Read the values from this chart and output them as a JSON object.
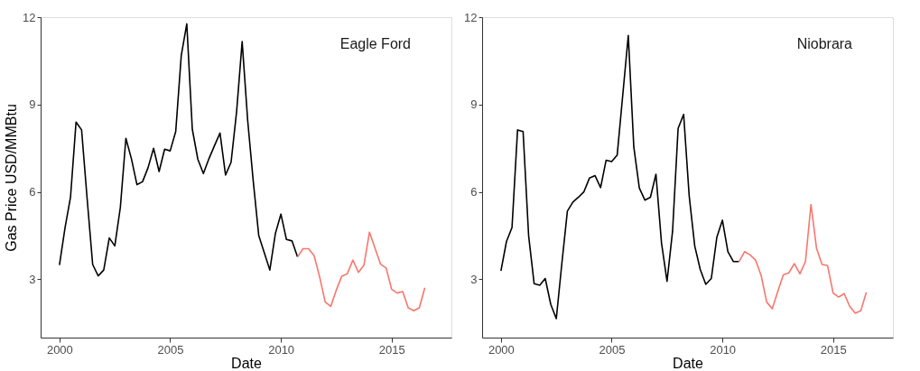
{
  "chart_data": [
    {
      "type": "line",
      "title": "Eagle Ford",
      "xlabel": "Date",
      "ylabel": "Gas Price USD/MMBtu",
      "xlim": [
        1999.15,
        2017.7
      ],
      "xticks": [
        2000,
        2005,
        2010,
        2015
      ],
      "ylim": [
        1,
        12
      ],
      "yticks": [
        3,
        6,
        9,
        12
      ],
      "grid": false,
      "legend": false,
      "line_style": "solid",
      "marker": "none",
      "series": [
        {
          "color": "#000000",
          "x": [
            2000,
            2000.25,
            2000.5,
            2000.75,
            2001,
            2001.25,
            2001.5,
            2001.75,
            2002,
            2002.25,
            2002.5,
            2002.75,
            2003,
            2003.25,
            2003.5,
            2003.75,
            2004,
            2004.25,
            2004.5,
            2004.75,
            2005,
            2005.25,
            2005.5,
            2005.75,
            2006,
            2006.25,
            2006.5,
            2006.75,
            2007,
            2007.25,
            2007.5,
            2007.75,
            2008,
            2008.25,
            2008.5,
            2008.75,
            2009,
            2009.25,
            2009.5,
            2009.75,
            2010,
            2010.25,
            2010.5,
            2010.75
          ],
          "values": [
            3.49,
            4.76,
            5.82,
            8.4,
            8.13,
            5.77,
            3.51,
            3.12,
            3.32,
            4.42,
            4.15,
            5.47,
            7.84,
            7.14,
            6.25,
            6.35,
            6.83,
            7.5,
            6.7,
            7.47,
            7.41,
            8.07,
            10.68,
            11.77,
            8.15,
            7.12,
            6.63,
            7.14,
            7.59,
            8.02,
            6.58,
            7.02,
            8.76,
            11.16,
            8.45,
            6.38,
            4.5,
            3.91,
            3.32,
            4.57,
            5.24,
            4.37,
            4.32,
            3.77
          ]
        },
        {
          "color": "#f8766d",
          "x": [
            2010.75,
            2011,
            2011.25,
            2011.5,
            2011.75,
            2012,
            2012.25,
            2012.5,
            2012.75,
            2013,
            2013.25,
            2013.5,
            2013.75,
            2014,
            2014.25,
            2014.5,
            2014.75,
            2015,
            2015.25,
            2015.5,
            2015.75,
            2016,
            2016.25,
            2016.5
          ],
          "values": [
            3.77,
            4.05,
            4.05,
            3.81,
            3.08,
            2.22,
            2.07,
            2.63,
            3.11,
            3.19,
            3.66,
            3.24,
            3.49,
            4.62,
            4.07,
            3.52,
            3.39,
            2.66,
            2.53,
            2.58,
            2.02,
            1.92,
            2.02,
            2.71
          ]
        }
      ]
    },
    {
      "type": "line",
      "title": "Niobrara",
      "xlabel": "Date",
      "xlim": [
        1999.15,
        2017.7
      ],
      "xticks": [
        2000,
        2005,
        2010,
        2015
      ],
      "ylim": [
        1,
        12
      ],
      "yticks": [
        3,
        6,
        9,
        12
      ],
      "grid": false,
      "legend": false,
      "line_style": "solid",
      "marker": "none",
      "series": [
        {
          "color": "#000000",
          "x": [
            2000,
            2000.25,
            2000.5,
            2000.75,
            2001,
            2001.25,
            2001.5,
            2001.75,
            2002,
            2002.25,
            2002.5,
            2002.75,
            2003,
            2003.25,
            2003.5,
            2003.75,
            2004,
            2004.25,
            2004.5,
            2004.75,
            2005,
            2005.25,
            2005.5,
            2005.75,
            2006,
            2006.25,
            2006.5,
            2006.75,
            2007,
            2007.25,
            2007.5,
            2007.75,
            2008,
            2008.25,
            2008.5,
            2008.75,
            2009,
            2009.25,
            2009.5,
            2009.75,
            2010,
            2010.25,
            2010.5,
            2010.75
          ],
          "values": [
            3.29,
            4.3,
            4.78,
            8.13,
            8.07,
            4.5,
            2.85,
            2.8,
            3.03,
            2.14,
            1.65,
            3.54,
            5.34,
            5.65,
            5.82,
            6.01,
            6.48,
            6.56,
            6.15,
            7.09,
            7.04,
            7.27,
            9.32,
            11.37,
            7.54,
            6.13,
            5.72,
            5.82,
            6.61,
            4.25,
            2.93,
            4.65,
            8.18,
            8.66,
            5.87,
            4.15,
            3.34,
            2.83,
            3.03,
            4.45,
            5.03,
            3.95,
            3.61,
            3.61
          ]
        },
        {
          "color": "#f8766d",
          "x": [
            2010.75,
            2011,
            2011.25,
            2011.5,
            2011.75,
            2012,
            2012.25,
            2012.5,
            2012.75,
            2013,
            2013.25,
            2013.5,
            2013.75,
            2014,
            2014.25,
            2014.5,
            2014.75,
            2015,
            2015.25,
            2015.5,
            2015.75,
            2016,
            2016.25,
            2016.5
          ],
          "values": [
            3.61,
            3.95,
            3.84,
            3.66,
            3.13,
            2.22,
            1.99,
            2.58,
            3.15,
            3.22,
            3.54,
            3.19,
            3.61,
            5.57,
            4.07,
            3.51,
            3.47,
            2.53,
            2.39,
            2.51,
            2.07,
            1.84,
            1.92,
            2.56
          ]
        }
      ]
    }
  ]
}
